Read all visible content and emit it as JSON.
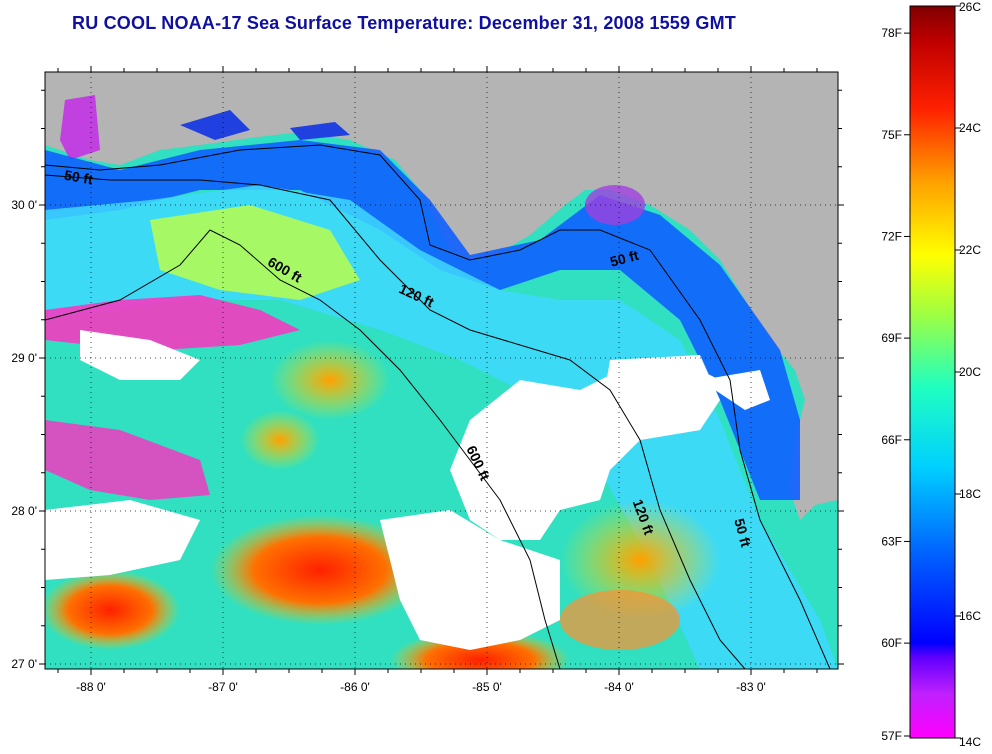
{
  "map": {
    "title": "RU COOL  NOAA-17  Sea Surface Temperature:  December 31, 2008 1559 GMT",
    "lon_ticks": [
      "-88 0'",
      "-87 0'",
      "-86 0'",
      "-85 0'",
      "-84 0'",
      "-83 0'"
    ],
    "lat_ticks": [
      "30 0'",
      "29 0'",
      "28 0'",
      "27 0'"
    ],
    "contour_labels": [
      {
        "text": "50 ft",
        "lon": -88.1,
        "lat": 30.15,
        "angle": 10
      },
      {
        "text": "600 ft",
        "lon": -86.55,
        "lat": 29.55,
        "angle": 30
      },
      {
        "text": "120 ft",
        "lon": -85.55,
        "lat": 29.38,
        "angle": 25
      },
      {
        "text": "50 ft",
        "lon": -83.95,
        "lat": 29.62,
        "angle": -15
      },
      {
        "text": "600 ft",
        "lon": -85.1,
        "lat": 28.3,
        "angle": 65
      },
      {
        "text": "120 ft",
        "lon": -83.85,
        "lat": 27.95,
        "angle": 70
      },
      {
        "text": "50 ft",
        "lon": -83.1,
        "lat": 27.85,
        "angle": 75
      }
    ],
    "colors": {
      "land": "#b4b4b4",
      "cloud": "#ffffff",
      "title": "#1010a0"
    }
  },
  "colorbar": {
    "fahrenheit_labels": [
      "78F",
      "75F",
      "72F",
      "69F",
      "66F",
      "63F",
      "60F",
      "57F"
    ],
    "celsius_labels": [
      "26C",
      "24C",
      "22C",
      "20C",
      "18C",
      "16C",
      "14C"
    ],
    "range_c": [
      14,
      26
    ],
    "stops": [
      "#ff00ff",
      "#8000ff",
      "#0000ff",
      "#0080ff",
      "#00ffff",
      "#80ff80",
      "#ffff00",
      "#ff8000",
      "#ff0000",
      "#800000"
    ]
  }
}
